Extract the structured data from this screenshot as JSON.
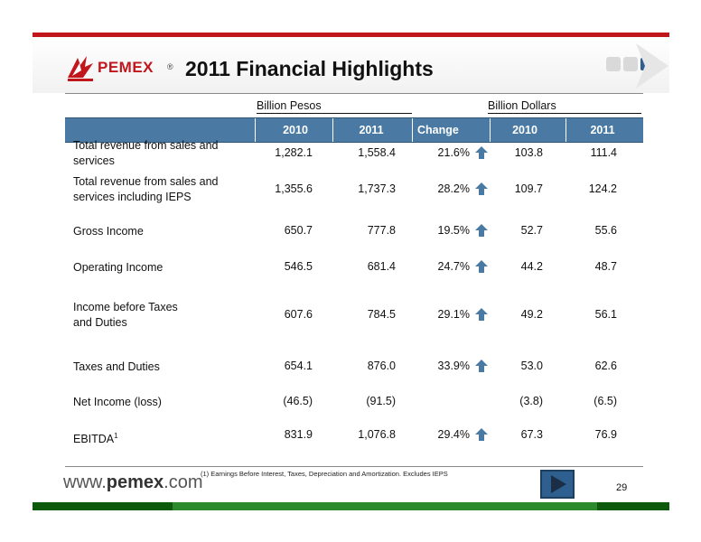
{
  "brand": {
    "name": "PEMEX",
    "registered": "®",
    "red": "#c0161c",
    "green": "#1f7a1f",
    "table_blue": "#4a7aa3"
  },
  "title": "2011 Financial Highlights",
  "groups": {
    "pesos": "Billion Pesos",
    "dollars": "Billion Dollars"
  },
  "columns": [
    "2010",
    "2011",
    "Change",
    "2010",
    "2011"
  ],
  "rows": [
    {
      "label": "Total revenue from sales and services",
      "label_lines": [
        "Total revenue from sales and",
        "services"
      ],
      "p2010": "1,282.1",
      "p2011": "1,558.4",
      "change": "21.6%",
      "up": true,
      "d2010": "103.8",
      "d2011": "111.4"
    },
    {
      "label": "Total revenue from sales and services including IEPS",
      "label_lines": [
        "Total revenue from sales and",
        "services including IEPS"
      ],
      "p2010": "1,355.6",
      "p2011": "1,737.3",
      "change": "28.2%",
      "up": true,
      "d2010": "109.7",
      "d2011": "124.2"
    },
    {
      "label": "Gross Income",
      "label_lines": [
        "Gross Income"
      ],
      "p2010": "650.7",
      "p2011": "777.8",
      "change": "19.5%",
      "up": true,
      "d2010": "52.7",
      "d2011": "55.6"
    },
    {
      "label": "Operating Income",
      "label_lines": [
        "Operating Income"
      ],
      "p2010": "546.5",
      "p2011": "681.4",
      "change": "24.7%",
      "up": true,
      "d2010": "44.2",
      "d2011": "48.7"
    },
    {
      "label": "Income before Taxes and Duties",
      "label_lines": [
        "Income before Taxes",
        "and Duties"
      ],
      "p2010": "607.6",
      "p2011": "784.5",
      "change": "29.1%",
      "up": true,
      "d2010": "49.2",
      "d2011": "56.1"
    },
    {
      "label": "Taxes and Duties",
      "label_lines": [
        "Taxes and Duties"
      ],
      "p2010": "654.1",
      "p2011": "876.0",
      "change": "33.9%",
      "up": true,
      "d2010": "53.0",
      "d2011": "62.6"
    },
    {
      "label": "Net Income (loss)",
      "label_lines": [
        "Net Income (loss)"
      ],
      "p2010": "(46.5)",
      "p2011": "(91.5)",
      "change": "",
      "up": false,
      "d2010": "(3.8)",
      "d2011": "(6.5)"
    },
    {
      "label": "EBITDA",
      "label_lines": [
        "EBITDA"
      ],
      "label_sup": "1",
      "p2010": "831.9",
      "p2011": "1,076.8",
      "change": "29.4%",
      "up": true,
      "d2010": "67.3",
      "d2011": "76.9"
    }
  ],
  "footnote": "(1)    Earnings Before Interest, Taxes, Depreciation and Amortization. Excludes IEPS",
  "url": {
    "prefix": "www.",
    "main": "pemex",
    "suffix": ".com"
  },
  "page_number": "29",
  "icons": {
    "up": "up-arrow-icon",
    "next": "next-slide-icon",
    "logo": "pemex-eagle-logo"
  }
}
